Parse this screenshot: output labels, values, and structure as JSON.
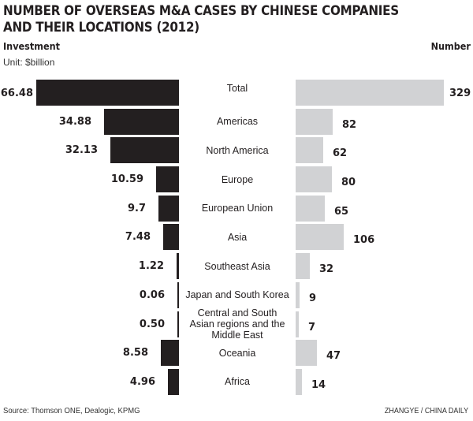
{
  "title_line1": "NUMBER OF OVERSEAS M&A CASES BY CHINESE COMPANIES",
  "title_line2": "AND THEIR LOCATIONS (2012)",
  "left_header": "Investment",
  "unit": "Unit: $billion",
  "right_header": "Number",
  "source": "Source: Thomson ONE, Dealogic, KPMG",
  "credit": "ZHANGYE / CHINA DAILY",
  "colors": {
    "investment_bar": "#231f20",
    "number_bar": "#d1d2d4",
    "text": "#231f20"
  },
  "chart_data": {
    "type": "bar",
    "title": "NUMBER OF OVERSEAS M&A CASES BY CHINESE COMPANIES AND THEIR LOCATIONS (2012)",
    "layout": "back-to-back horizontal bars",
    "categories": [
      "Total",
      "Americas",
      "North America",
      "Europe",
      "European Union",
      "Asia",
      "Southeast Asia",
      "Japan and South Korea",
      "Central and South Asian regions and the Middle East",
      "Oceania",
      "Africa"
    ],
    "series": [
      {
        "name": "Investment",
        "unit": "$billion",
        "side": "left",
        "color": "#231f20",
        "values": [
          66.48,
          34.88,
          32.13,
          10.59,
          9.7,
          7.48,
          1.22,
          0.06,
          0.5,
          8.58,
          4.96
        ],
        "labels": [
          "66.48",
          "34.88",
          "32.13",
          "10.59",
          "9.7",
          "7.48",
          "1.22",
          "0.06",
          "0.50",
          "8.58",
          "4.96"
        ]
      },
      {
        "name": "Number",
        "side": "right",
        "color": "#d1d2d4",
        "values": [
          329,
          82,
          62,
          80,
          65,
          106,
          32,
          9,
          7,
          47,
          14
        ],
        "labels": [
          "329",
          "82",
          "62",
          "80",
          "65",
          "106",
          "32",
          "9",
          "7",
          "47",
          "14"
        ]
      }
    ],
    "xlabel": "",
    "ylabel": "",
    "grid": false,
    "legend": "none (column headers: Investment / Number)"
  }
}
